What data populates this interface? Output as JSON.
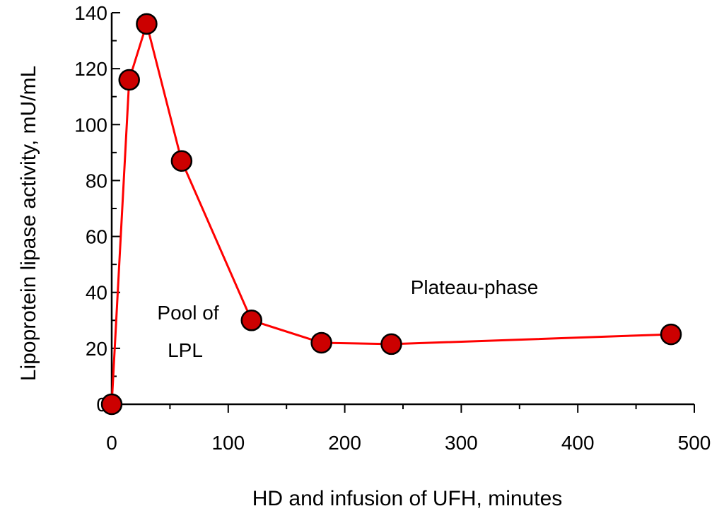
{
  "chart_data": {
    "type": "line",
    "title": "",
    "xlabel": "HD and infusion of UFH, minutes",
    "ylabel": "Lipoprotein lipase activity, mU/mL",
    "xlim": [
      0,
      500
    ],
    "ylim": [
      0,
      140
    ],
    "x_ticks": [
      0,
      100,
      200,
      300,
      400,
      500
    ],
    "y_ticks": [
      0,
      20,
      40,
      60,
      80,
      100,
      120,
      140
    ],
    "x_tick_labels": [
      "0",
      "100",
      "200",
      "300",
      "400",
      "500"
    ],
    "y_tick_labels": [
      "0",
      "20",
      "40",
      "60",
      "80",
      "100",
      "120",
      "140"
    ],
    "grid": false,
    "legend": "none",
    "series": [
      {
        "x": [
          0,
          15,
          30,
          60,
          120,
          180,
          240,
          480
        ],
        "y": [
          0,
          116,
          136,
          87,
          30,
          22,
          21.5,
          25
        ],
        "line_color": "#ff0000",
        "marker_color": "#cc0000",
        "marker_edge_color": "#000000"
      }
    ],
    "annotations": [
      {
        "id": "pool",
        "lines": [
          "Pool of",
          "LPL"
        ]
      },
      {
        "id": "plateau",
        "lines": [
          "Plateau-phase"
        ]
      }
    ]
  }
}
